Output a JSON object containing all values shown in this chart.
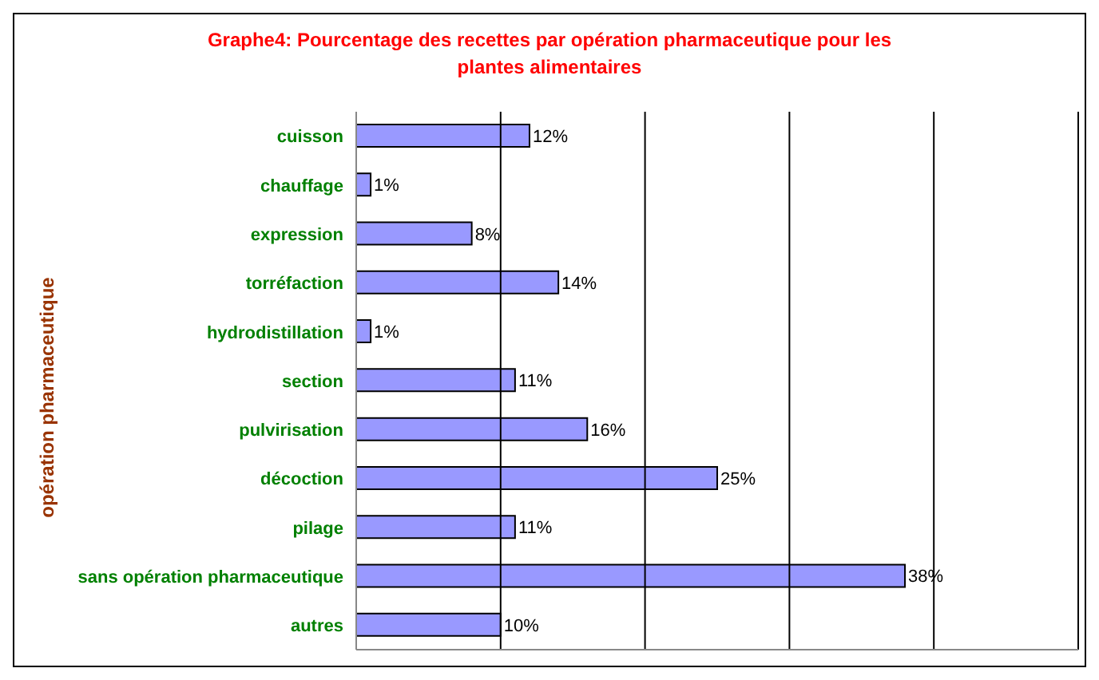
{
  "chart_data": {
    "type": "bar",
    "orientation": "horizontal",
    "title": "Graphe4: Pourcentage des recettes par opération pharmaceutique pour les plantes alimentaires",
    "ylabel": "opération pharmaceutique",
    "categories": [
      "cuisson",
      "chauffage",
      "expression",
      "torréfaction",
      "hydrodistillation",
      "section",
      "pulvirisation",
      "décoction",
      "pilage",
      "sans opération pharmaceutique",
      "autres"
    ],
    "values": [
      12,
      1,
      8,
      14,
      1,
      11,
      16,
      25,
      11,
      38,
      10
    ],
    "value_labels": [
      "12%",
      "1%",
      "8%",
      "14%",
      "1%",
      "11%",
      "16%",
      "25%",
      "11%",
      "38%",
      "10%"
    ],
    "color": "#9999ff",
    "xlim": [
      0,
      50
    ],
    "xticks": [
      {
        "value": 0,
        "label": null
      },
      {
        "value": 10,
        "label": null
      },
      {
        "value": 20,
        "label": null
      },
      {
        "value": 30,
        "label": null
      },
      {
        "value": 40,
        "label": null
      },
      {
        "value": 50,
        "label": null
      }
    ],
    "grid": "x",
    "tick_labels": "y"
  }
}
